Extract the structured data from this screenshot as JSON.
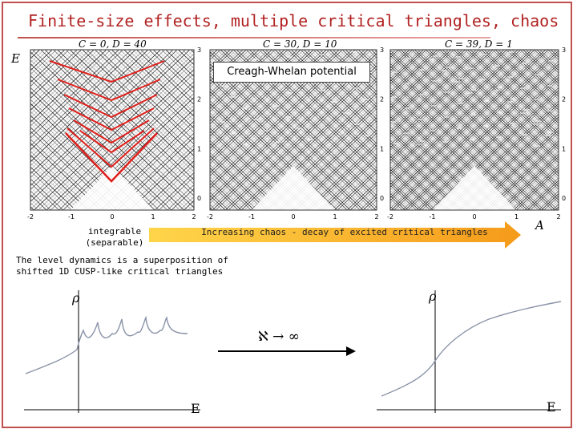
{
  "title": "Finite-size effects, multiple critical triangles, chaos",
  "panels": [
    {
      "label": "C = 0, D = 40"
    },
    {
      "label": "C = 30, D = 10"
    },
    {
      "label": "C = 39, D = 1"
    }
  ],
  "axis": {
    "y_label": "E",
    "x_label": "A",
    "x_ticks": [
      "-2",
      "-1",
      "0",
      "1",
      "2"
    ],
    "y_ticks": [
      "0",
      "1",
      "2",
      "3"
    ]
  },
  "creagh_label": "Creagh-Whelan potential",
  "integrable_label_line1": "integrable",
  "integrable_label_line2": "(separable)",
  "arrow_text": "Increasing chaos - decay of excited critical triangles",
  "level_dynamics_line1": "The level dynamics is a superposition of",
  "level_dynamics_line2": "shifted 1D CUSP-like critical triangles",
  "lower_plots": {
    "left_y_label": "ρ",
    "left_x_label": "E",
    "right_y_label": "ρ",
    "right_x_label": "E",
    "limit_label": "ℵ → ∞"
  },
  "colors": {
    "accent": "#c0504d",
    "arrow": "#f5a623",
    "red_triangles": "#e0201c"
  }
}
